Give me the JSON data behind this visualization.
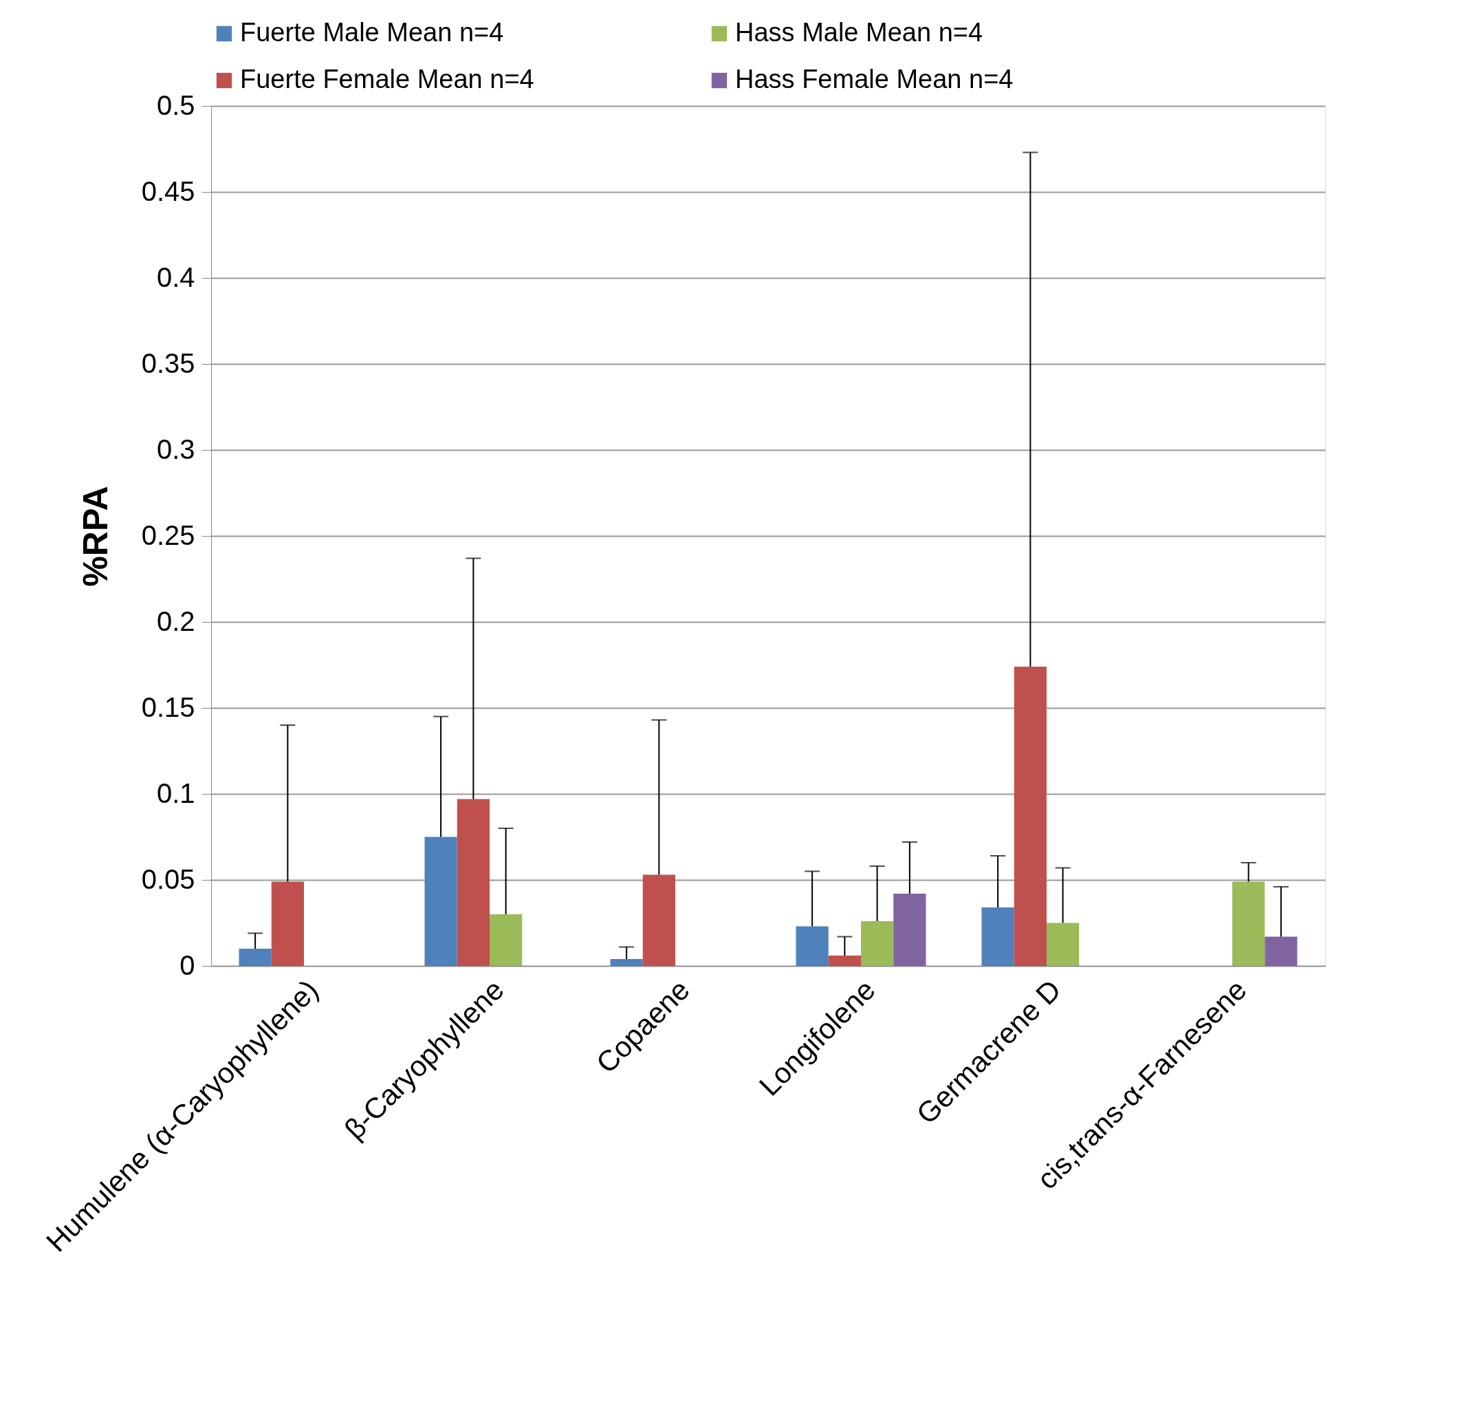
{
  "chart_data": {
    "type": "bar",
    "ylabel": "%RPA",
    "categories": [
      "Humulene (α-Caryophyllene)",
      "β-Caryophyllene",
      "Copaene",
      "Longifolene",
      "Germacrene D",
      "cis,trans-α-Farnesene"
    ],
    "series": [
      {
        "name": "Fuerte Male Mean n=4",
        "color": "#4f81bd",
        "values": [
          0.01,
          0.075,
          0.004,
          0.023,
          0.034,
          null
        ],
        "errors": [
          [
            0.01,
            0.019
          ],
          [
            0.075,
            0.145
          ],
          [
            0.004,
            0.011
          ],
          [
            0.023,
            0.055
          ],
          [
            0.034,
            0.064
          ],
          null
        ]
      },
      {
        "name": "Fuerte Female Mean n=4",
        "color": "#c0504d",
        "values": [
          0.049,
          0.097,
          0.053,
          0.006,
          0.174,
          null
        ],
        "errors": [
          [
            0.049,
            0.14
          ],
          [
            0.097,
            0.237
          ],
          [
            0.053,
            0.143
          ],
          [
            0.006,
            0.017
          ],
          [
            0.174,
            0.473
          ],
          null
        ]
      },
      {
        "name": "Hass Male Mean n=4",
        "color": "#9bbb59",
        "values": [
          null,
          0.03,
          null,
          0.026,
          0.025,
          0.049
        ],
        "errors": [
          null,
          [
            0.03,
            0.08
          ],
          null,
          [
            0.026,
            0.058
          ],
          [
            0.025,
            0.057
          ],
          [
            0.049,
            0.06
          ]
        ]
      },
      {
        "name": "Hass Female Mean n=4",
        "color": "#8064a2",
        "values": [
          null,
          null,
          null,
          0.042,
          null,
          0.017
        ],
        "errors": [
          null,
          null,
          null,
          [
            0.042,
            0.072
          ],
          null,
          [
            0.017,
            0.046
          ]
        ]
      }
    ],
    "ylim": [
      0,
      0.5
    ],
    "yticks": [
      0,
      0.05,
      0.1,
      0.15,
      0.2,
      0.25,
      0.3,
      0.35,
      0.4,
      0.45,
      0.5
    ],
    "grid": "y",
    "legend": "top"
  }
}
